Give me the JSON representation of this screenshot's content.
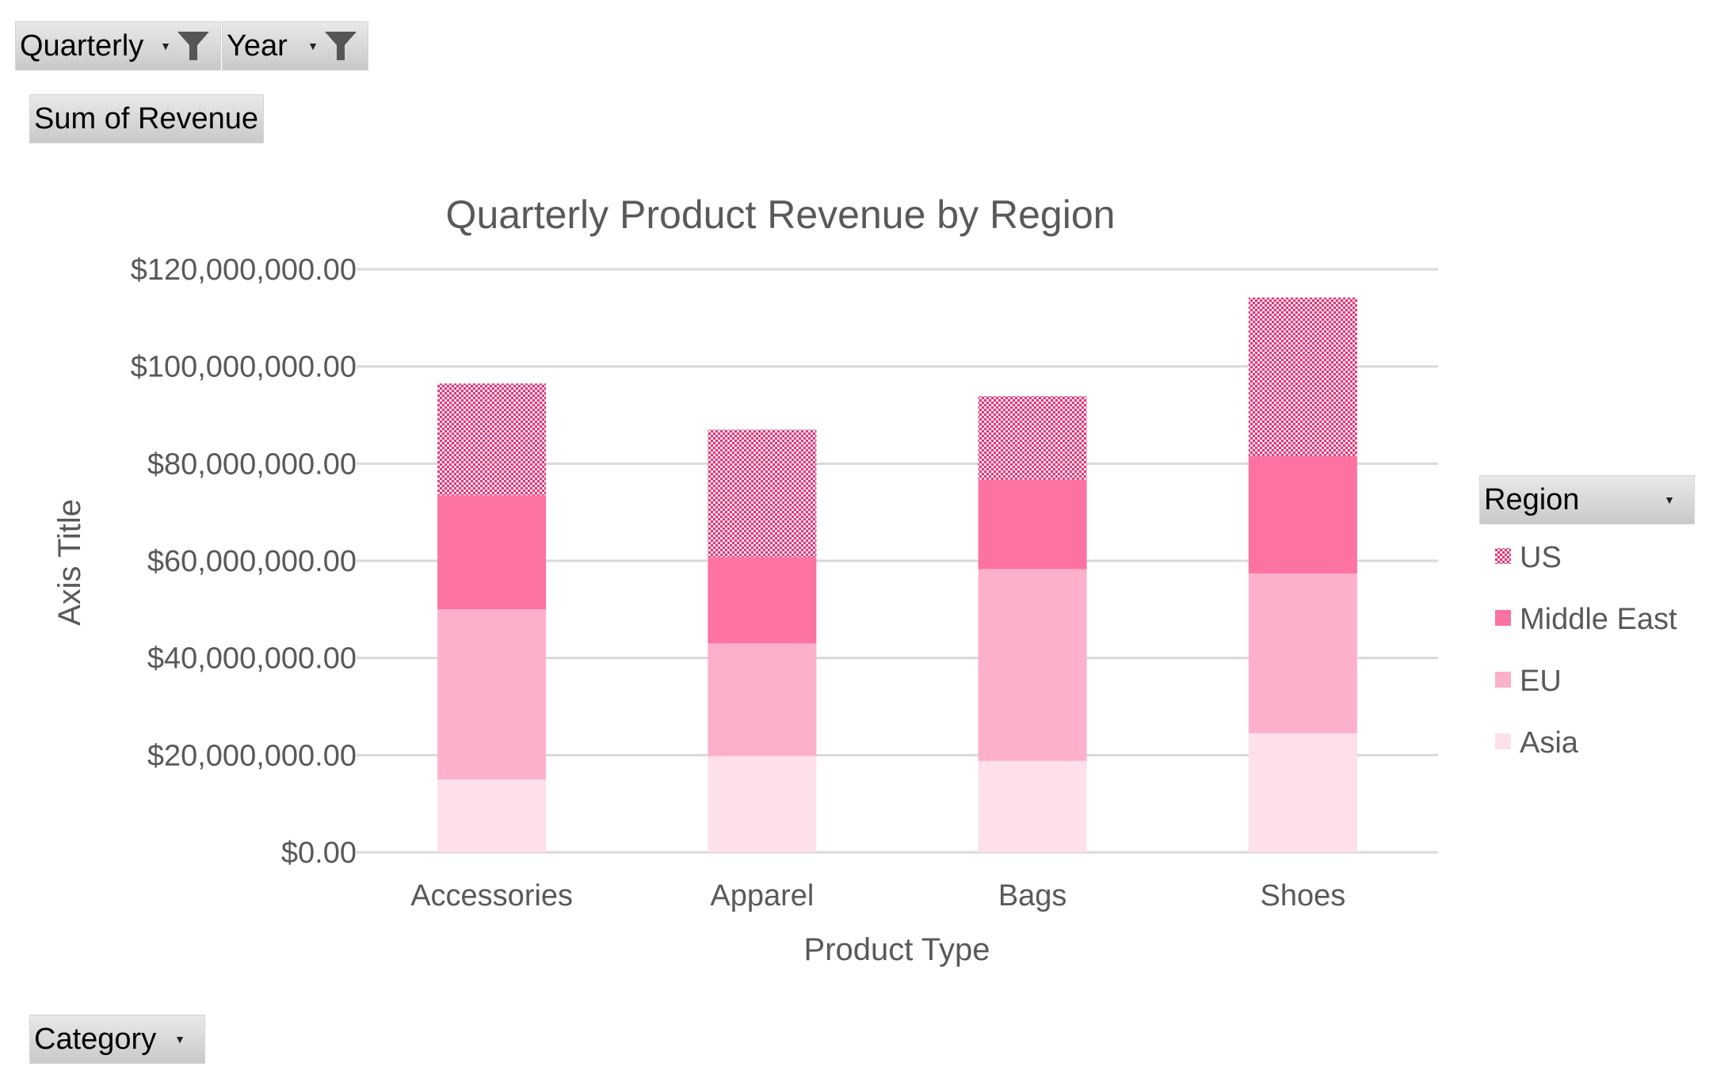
{
  "filters": {
    "quarterly": "Quarterly",
    "year": "Year",
    "sum_of_revenue": "Sum of Revenue",
    "category": "Category",
    "region": "Region",
    "filter_icon": "funnel-icon",
    "dropdown_icon": "dropdown-arrow-icon"
  },
  "chart_data": {
    "type": "bar",
    "stacked": true,
    "title": "Quarterly Product Revenue by Region",
    "xlabel": "Product Type",
    "ylabel": "Axis Title",
    "categories": [
      "Accessories",
      "Apparel",
      "Bags",
      "Shoes"
    ],
    "ylim": [
      0,
      120000000
    ],
    "yticks": [
      0,
      20000000,
      40000000,
      60000000,
      80000000,
      100000000,
      120000000
    ],
    "ytick_labels": [
      "$0.00",
      "$20,000,000.00",
      "$40,000,000.00",
      "$60,000,000.00",
      "$80,000,000.00",
      "$100,000,000.00",
      "$120,000,000.00"
    ],
    "grid": true,
    "legend_position": "right",
    "legend_title": "Region",
    "series": [
      {
        "name": "Asia",
        "values": [
          15000000,
          19800000,
          18800000,
          24500000
        ],
        "color": "#fde0e9",
        "pattern": "solid"
      },
      {
        "name": "EU",
        "values": [
          35000000,
          23200000,
          39500000,
          32900000
        ],
        "color": "#fdb0cb",
        "pattern": "solid"
      },
      {
        "name": "Middle East",
        "values": [
          23500000,
          17800000,
          18400000,
          24200000
        ],
        "color": "#fc72a1",
        "pattern": "solid"
      },
      {
        "name": "US",
        "values": [
          23000000,
          26200000,
          17200000,
          32600000
        ],
        "color": "#e3397a",
        "pattern": "checker"
      }
    ]
  }
}
